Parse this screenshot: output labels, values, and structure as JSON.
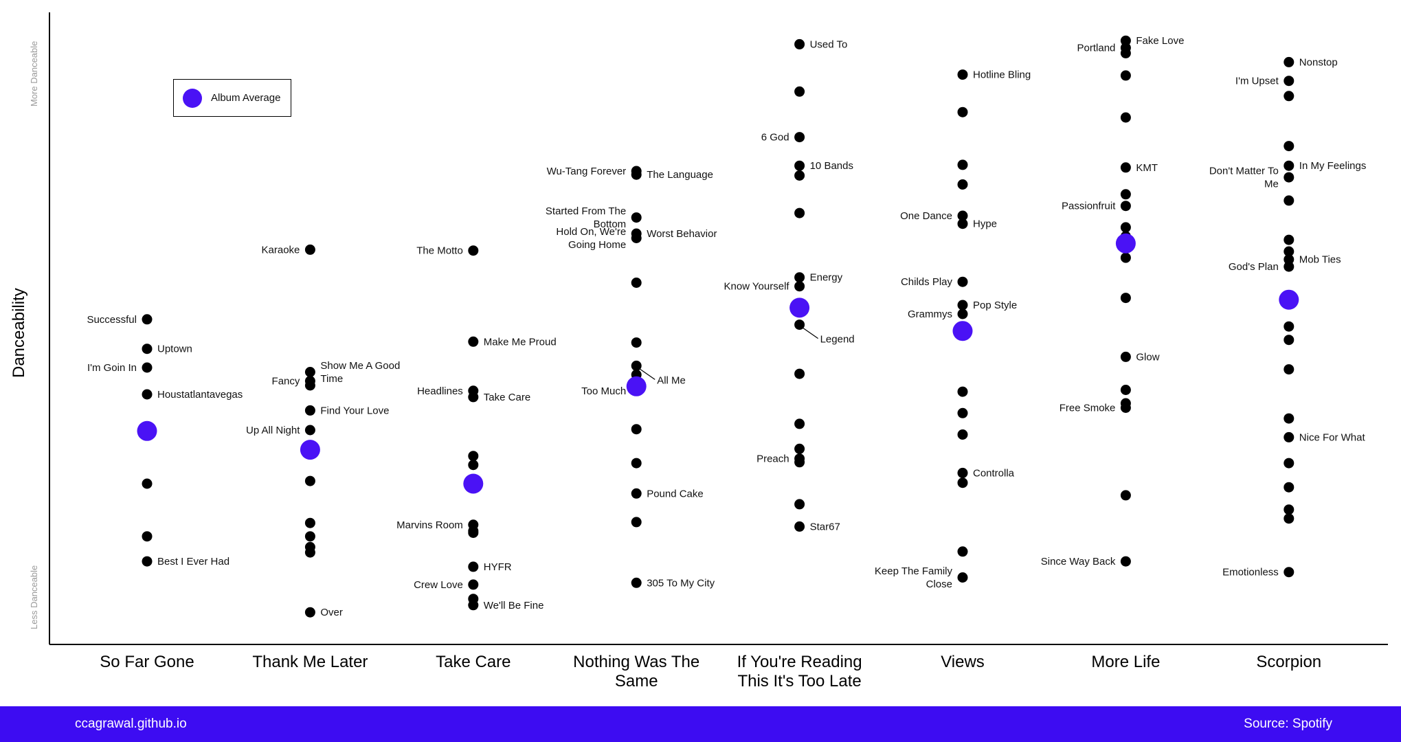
{
  "chart_data": {
    "type": "scatter",
    "ylabel": "Danceability",
    "y_hint_top": "More Danceable",
    "y_hint_bottom": "Less Danceable",
    "ylim": [
      0.3,
      1.0
    ],
    "legend": {
      "label": "Album Average",
      "placement": "top-left"
    },
    "colors": {
      "average": "#4a12f5",
      "track": "#000000",
      "footer": "#3d0cf2"
    },
    "albums": [
      {
        "name": "So Far Gone",
        "average": 0.539,
        "tracks": [
          {
            "label": "Successful",
            "value": 0.664,
            "side": "left"
          },
          {
            "label": "Uptown",
            "value": 0.631,
            "side": "right"
          },
          {
            "label": "I'm Goin In",
            "value": 0.61,
            "side": "left"
          },
          {
            "label": "Houstatlantavegas",
            "value": 0.58,
            "side": "right"
          },
          {
            "value": 0.48
          },
          {
            "value": 0.421
          },
          {
            "label": "Best I Ever Had",
            "value": 0.393,
            "side": "right"
          }
        ]
      },
      {
        "name": "Thank Me Later",
        "average": 0.518,
        "tracks": [
          {
            "label": "Karaoke",
            "value": 0.742,
            "side": "left"
          },
          {
            "label": "Show Me A Good Time",
            "value": 0.605,
            "side": "right"
          },
          {
            "label": "Fancy",
            "value": 0.595,
            "side": "left"
          },
          {
            "value": 0.59
          },
          {
            "label": "Find Your Love",
            "value": 0.562,
            "side": "right"
          },
          {
            "label": "Up All Night",
            "value": 0.54,
            "side": "left"
          },
          {
            "value": 0.52
          },
          {
            "value": 0.483
          },
          {
            "value": 0.436
          },
          {
            "value": 0.421
          },
          {
            "value": 0.409
          },
          {
            "value": 0.403
          },
          {
            "label": "Over",
            "value": 0.336,
            "side": "right"
          }
        ]
      },
      {
        "name": "Take Care",
        "average": 0.48,
        "tracks": [
          {
            "label": "The Motto",
            "value": 0.741,
            "side": "left"
          },
          {
            "label": "Make Me Proud",
            "value": 0.639,
            "side": "right"
          },
          {
            "label": "Headlines",
            "value": 0.584,
            "side": "left"
          },
          {
            "label": "Take Care",
            "value": 0.577,
            "side": "right"
          },
          {
            "value": 0.511
          },
          {
            "value": 0.501
          },
          {
            "label": "Marvins Room",
            "value": 0.434,
            "side": "left"
          },
          {
            "value": 0.427
          },
          {
            "value": 0.425
          },
          {
            "label": "HYFR",
            "value": 0.387,
            "side": "right"
          },
          {
            "label": "Crew Love",
            "value": 0.367,
            "side": "left"
          },
          {
            "value": 0.351
          },
          {
            "label": "We'll Be Fine",
            "value": 0.344,
            "side": "right"
          }
        ]
      },
      {
        "name": "Nothing Was The Same",
        "average": 0.589,
        "tracks": [
          {
            "label": "Wu-Tang Forever",
            "value": 0.83,
            "side": "left"
          },
          {
            "label": "The Language",
            "value": 0.826,
            "side": "right"
          },
          {
            "label": "Started From The Bottom",
            "value": 0.778,
            "side": "left"
          },
          {
            "label": "Worst Behavior",
            "value": 0.76,
            "side": "right"
          },
          {
            "label": "Hold On, We're Going Home",
            "value": 0.755,
            "side": "left"
          },
          {
            "value": 0.705
          },
          {
            "value": 0.638
          },
          {
            "label": "All Me",
            "value": 0.612,
            "side": "right-leader"
          },
          {
            "value": 0.602
          },
          {
            "label": "Too Much",
            "value": 0.584,
            "side": "left"
          },
          {
            "value": 0.541
          },
          {
            "value": 0.503
          },
          {
            "label": "Pound Cake",
            "value": 0.469,
            "side": "right"
          },
          {
            "value": 0.437
          },
          {
            "label": "305 To My City",
            "value": 0.369,
            "side": "right"
          }
        ]
      },
      {
        "name": "If You're Reading This It's Too Late",
        "average": 0.677,
        "tracks": [
          {
            "label": "Used To",
            "value": 0.972,
            "side": "right"
          },
          {
            "value": 0.919
          },
          {
            "label": "6 God",
            "value": 0.868,
            "side": "left"
          },
          {
            "label": "10 Bands",
            "value": 0.836,
            "side": "right"
          },
          {
            "value": 0.825
          },
          {
            "value": 0.783
          },
          {
            "label": "Energy",
            "value": 0.711,
            "side": "right"
          },
          {
            "label": "Know Yourself",
            "value": 0.701,
            "side": "left"
          },
          {
            "label": "Legend",
            "value": 0.658,
            "side": "right-leader"
          },
          {
            "value": 0.603
          },
          {
            "value": 0.547
          },
          {
            "value": 0.519
          },
          {
            "label": "Preach",
            "value": 0.508,
            "side": "left"
          },
          {
            "value": 0.504
          },
          {
            "value": 0.457
          },
          {
            "label": "Star67",
            "value": 0.432,
            "side": "right"
          }
        ]
      },
      {
        "name": "Views",
        "average": 0.651,
        "tracks": [
          {
            "label": "Hotline Bling",
            "value": 0.938,
            "side": "right"
          },
          {
            "value": 0.896
          },
          {
            "value": 0.837
          },
          {
            "value": 0.815
          },
          {
            "label": "One Dance",
            "value": 0.78,
            "side": "left"
          },
          {
            "label": "Hype",
            "value": 0.771,
            "side": "right"
          },
          {
            "label": "Childs Play",
            "value": 0.706,
            "side": "left"
          },
          {
            "label": "Pop Style",
            "value": 0.68,
            "side": "right"
          },
          {
            "label": "Grammys",
            "value": 0.67,
            "side": "left"
          },
          {
            "value": 0.583
          },
          {
            "value": 0.559
          },
          {
            "value": 0.535
          },
          {
            "label": "Controlla",
            "value": 0.492,
            "side": "right"
          },
          {
            "value": 0.481
          },
          {
            "value": 0.404
          },
          {
            "label": "Keep The Family Close",
            "value": 0.375,
            "side": "left"
          }
        ]
      },
      {
        "name": "More Life",
        "average": 0.749,
        "tracks": [
          {
            "label": "Fake Love",
            "value": 0.976,
            "side": "right"
          },
          {
            "label": "Portland",
            "value": 0.968,
            "side": "left"
          },
          {
            "value": 0.962
          },
          {
            "value": 0.937
          },
          {
            "value": 0.89
          },
          {
            "label": "KMT",
            "value": 0.834,
            "side": "right"
          },
          {
            "value": 0.804
          },
          {
            "label": "Passionfruit",
            "value": 0.791,
            "side": "left"
          },
          {
            "value": 0.767
          },
          {
            "value": 0.757
          },
          {
            "value": 0.733
          },
          {
            "value": 0.688
          },
          {
            "label": "Glow",
            "value": 0.622,
            "side": "right"
          },
          {
            "value": 0.585
          },
          {
            "value": 0.57
          },
          {
            "label": "Free Smoke",
            "value": 0.565,
            "side": "left"
          },
          {
            "value": 0.467
          },
          {
            "label": "Since Way Back",
            "value": 0.393,
            "side": "left"
          }
        ]
      },
      {
        "name": "Scorpion",
        "average": 0.686,
        "tracks": [
          {
            "label": "Nonstop",
            "value": 0.952,
            "side": "right"
          },
          {
            "label": "I'm Upset",
            "value": 0.931,
            "side": "left"
          },
          {
            "value": 0.914
          },
          {
            "value": 0.858
          },
          {
            "label": "In My Feelings",
            "value": 0.836,
            "side": "right"
          },
          {
            "label": "Don't Matter To Me",
            "value": 0.823,
            "side": "left"
          },
          {
            "value": 0.797
          },
          {
            "value": 0.753
          },
          {
            "value": 0.74
          },
          {
            "label": "Mob Ties",
            "value": 0.731,
            "side": "right"
          },
          {
            "label": "God's Plan",
            "value": 0.723,
            "side": "left"
          },
          {
            "value": 0.656
          },
          {
            "value": 0.641
          },
          {
            "value": 0.608
          },
          {
            "value": 0.553
          },
          {
            "label": "Nice For What",
            "value": 0.532,
            "side": "right"
          },
          {
            "value": 0.503
          },
          {
            "value": 0.476
          },
          {
            "value": 0.451
          },
          {
            "value": 0.441
          },
          {
            "label": "Emotionless",
            "value": 0.381,
            "side": "left"
          }
        ]
      }
    ]
  },
  "footer": {
    "site": "ccagrawal.github.io",
    "source": "Source: Spotify"
  }
}
